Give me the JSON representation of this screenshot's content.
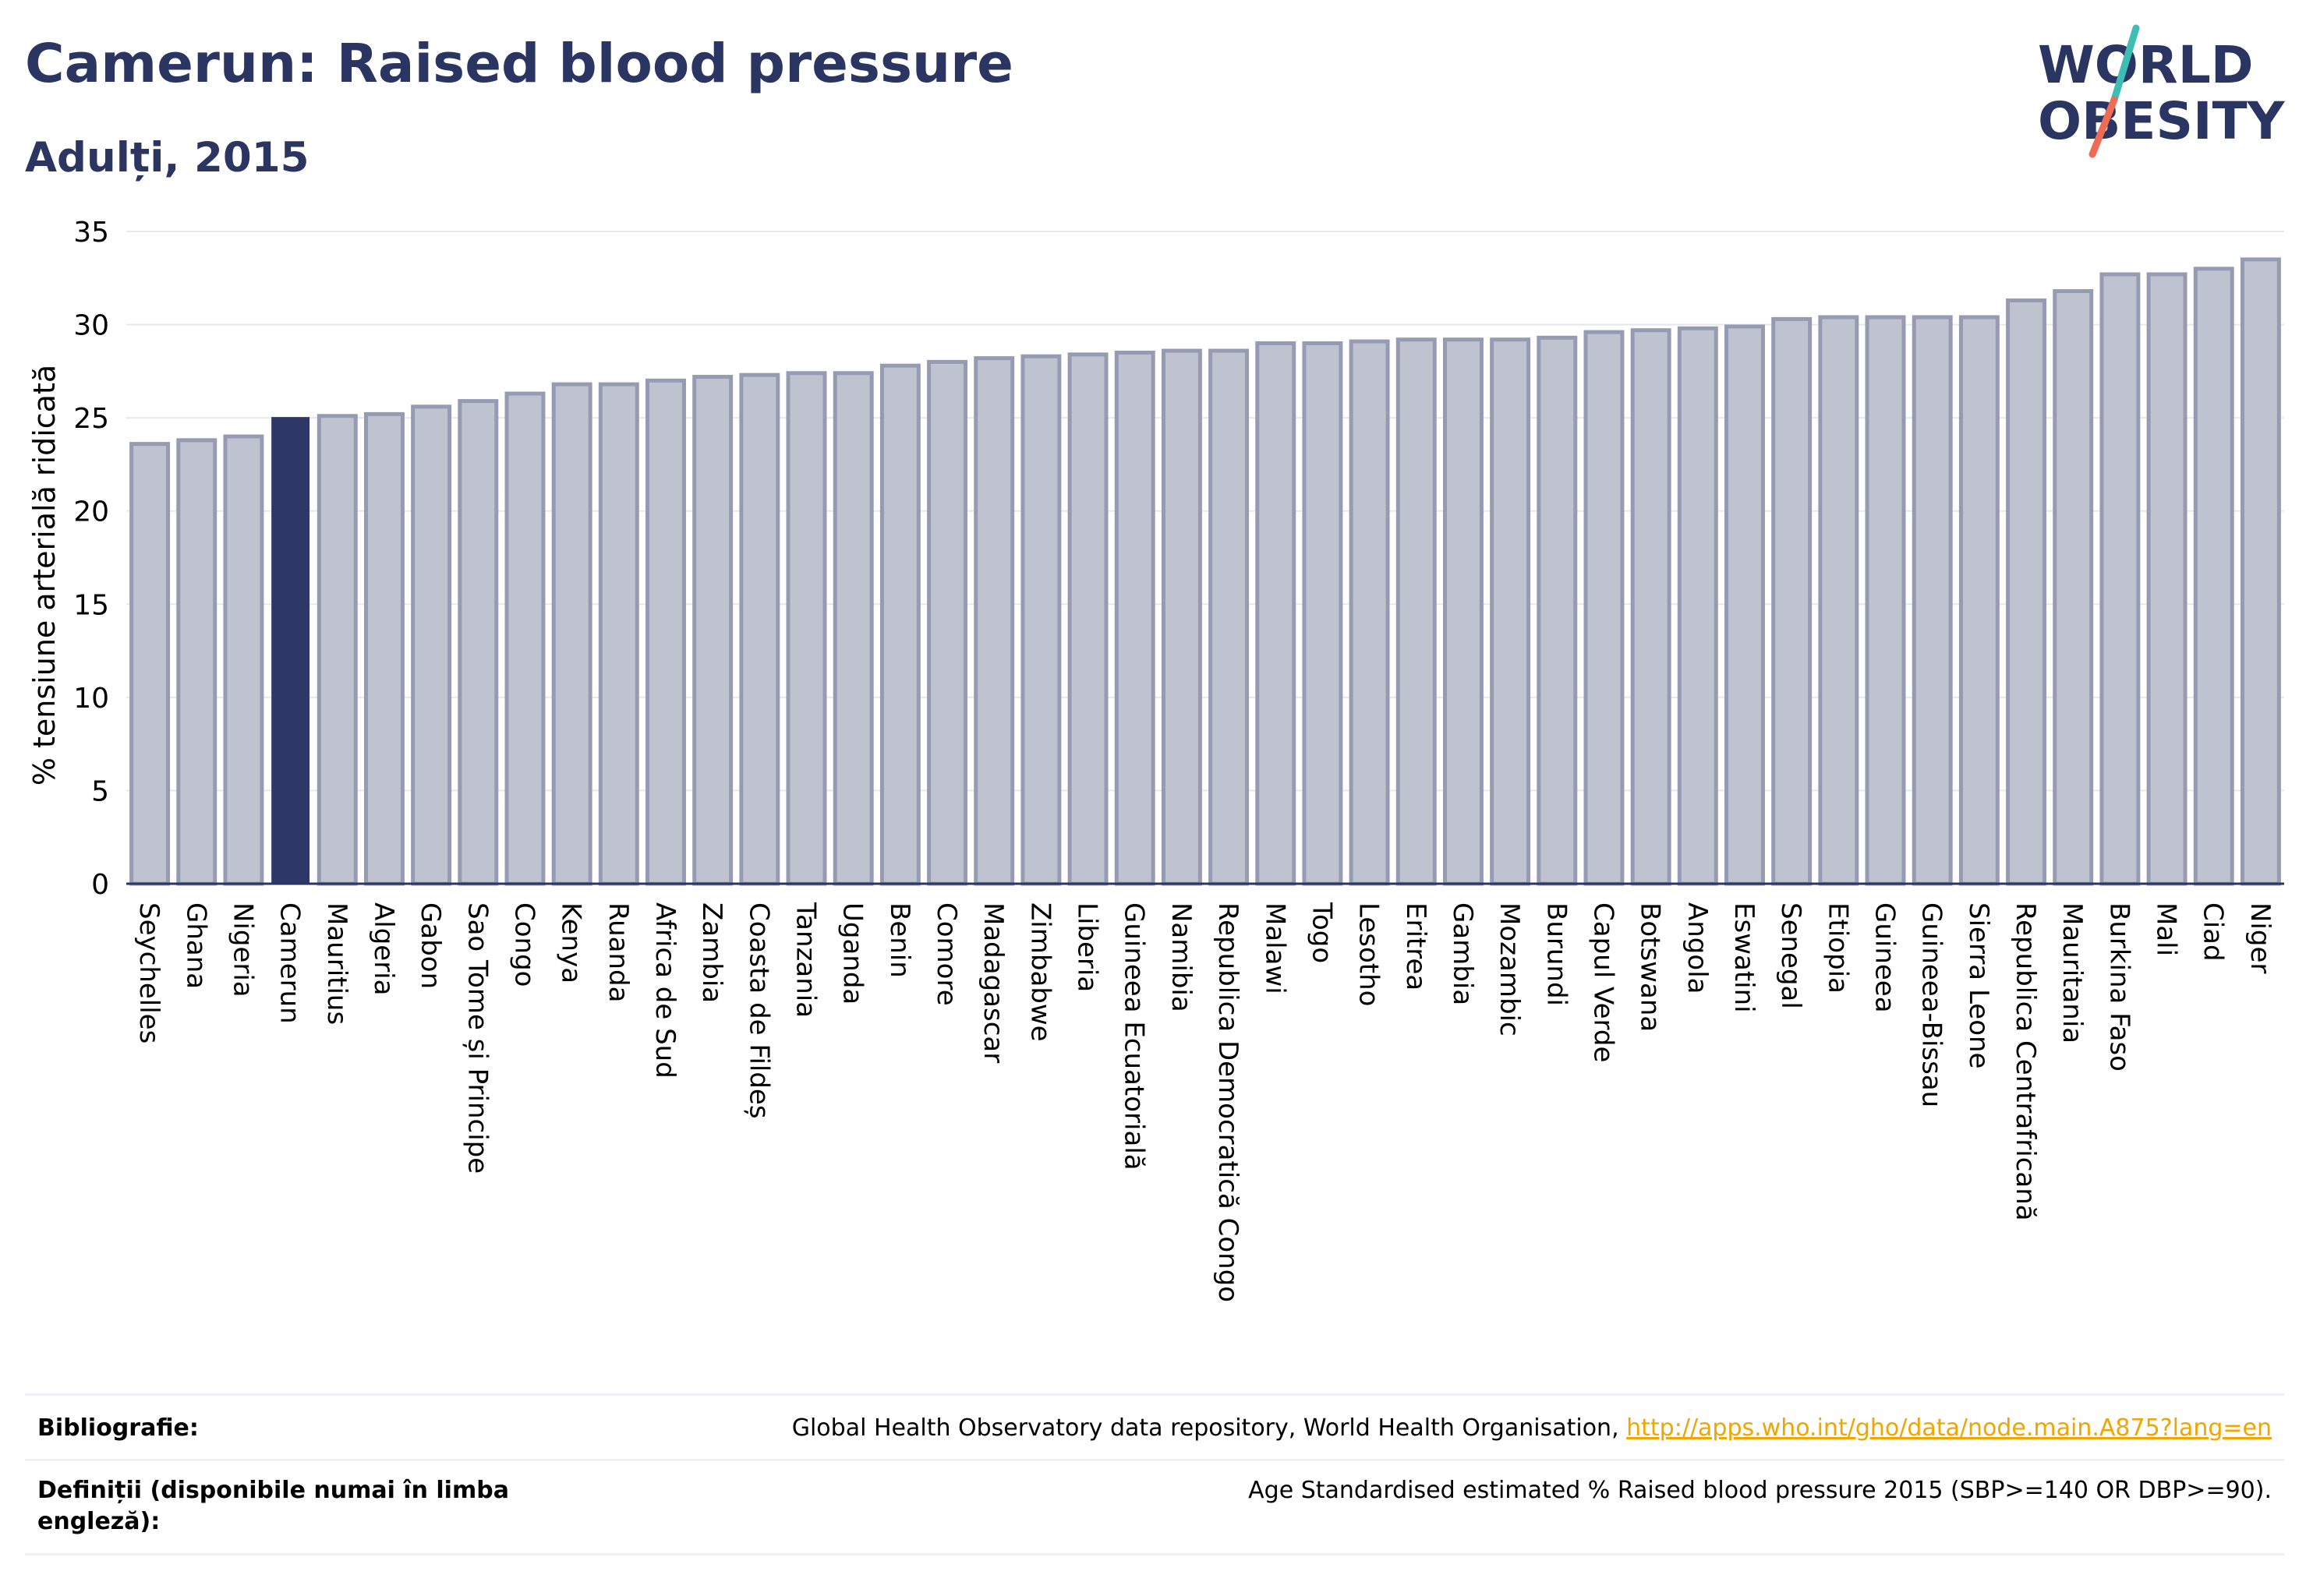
{
  "header": {
    "title": "Camerun: Raised blood pressure",
    "subtitle": "Adulți, 2015"
  },
  "logo": {
    "line1": "WORLD",
    "line2": "OBESITY"
  },
  "colors": {
    "title": "#2b3561",
    "bar_fill": "#bfc3d0",
    "bar_stroke": "#959bb3",
    "highlight": "#2d3867",
    "grid": "#e6e8ee",
    "link": "#f0a500",
    "logo_slash_top": "#3dbdb4",
    "logo_slash_bottom": "#ef6b55"
  },
  "chart_data": {
    "type": "bar",
    "ylabel": "% tensiune arterială ridicată",
    "ylim": [
      0,
      35
    ],
    "yticks": [
      0,
      5,
      10,
      15,
      20,
      25,
      30,
      35
    ],
    "grid": true,
    "highlight": "Camerun",
    "categories": [
      "Seychelles",
      "Ghana",
      "Nigeria",
      "Camerun",
      "Mauritius",
      "Algeria",
      "Gabon",
      "Sao Tome și Principe",
      "Congo",
      "Kenya",
      "Ruanda",
      "Africa de Sud",
      "Zambia",
      "Coasta de Fildeș",
      "Tanzania",
      "Uganda",
      "Benin",
      "Comore",
      "Madagascar",
      "Zimbabwe",
      "Liberia",
      "Guineea Ecuatorială",
      "Namibia",
      "Republica Democratică Congo",
      "Malawi",
      "Togo",
      "Lesotho",
      "Eritrea",
      "Gambia",
      "Mozambic",
      "Burundi",
      "Capul Verde",
      "Botswana",
      "Angola",
      "Eswatini",
      "Senegal",
      "Etiopia",
      "Guineea",
      "Guineea-Bissau",
      "Sierra Leone",
      "Republica Centrafricană",
      "Mauritania",
      "Burkina Faso",
      "Mali",
      "Ciad",
      "Niger"
    ],
    "values": [
      23.6,
      23.8,
      24.0,
      25.0,
      25.1,
      25.2,
      25.6,
      25.9,
      26.3,
      26.8,
      26.8,
      27.0,
      27.2,
      27.3,
      27.4,
      27.4,
      27.8,
      28.0,
      28.2,
      28.3,
      28.4,
      28.5,
      28.6,
      28.6,
      29.0,
      29.0,
      29.1,
      29.2,
      29.2,
      29.2,
      29.3,
      29.6,
      29.7,
      29.8,
      29.9,
      30.3,
      30.4,
      30.4,
      30.4,
      30.4,
      31.3,
      31.8,
      32.7,
      32.7,
      33.0,
      33.5
    ]
  },
  "footer": {
    "bibliography_label": "Bibliografie:",
    "bibliography_text": "Global Health Observatory data repository, World Health Organisation, ",
    "bibliography_link": "http://apps.who.int/gho/data/node.main.A875?lang=en",
    "definitions_label": "Definiții (disponibile numai în limba engleză):",
    "definitions_text": "Age Standardised estimated % Raised blood pressure 2015 (SBP>=140 OR DBP>=90)."
  }
}
